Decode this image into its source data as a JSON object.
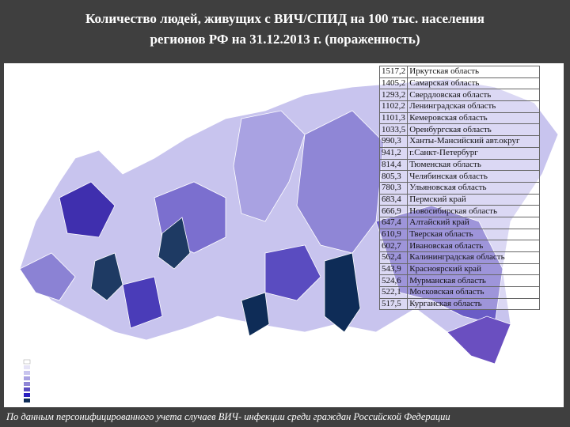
{
  "header": {
    "title_line1": "Количество людей, живущих с ВИЧ/СПИД на 100 тыс. населения",
    "title_line2": "регионов РФ на 31.12.2013 г. (пораженность)"
  },
  "table": {
    "rows": [
      [
        "1517,2",
        "Иркутская область"
      ],
      [
        "1405,2",
        "Самарская область"
      ],
      [
        "1293,2",
        "Свердловская область"
      ],
      [
        "1102,2",
        "Ленинградская область"
      ],
      [
        "1101,3",
        "Кемеровская область"
      ],
      [
        "1033,5",
        "Оренбургская область"
      ],
      [
        "990,3",
        "Ханты-Мансийский авт.округ"
      ],
      [
        "941,2",
        "г.Санкт-Петербург"
      ],
      [
        "814,4",
        "Тюменская область"
      ],
      [
        "805,3",
        "Челябинская область"
      ],
      [
        "780,3",
        "Ульяновская область"
      ],
      [
        "683,4",
        "Пермский край"
      ],
      [
        "666,9",
        "Новосибирская область"
      ],
      [
        "647,4",
        "Алтайский край"
      ],
      [
        "610,9",
        "Тверская область"
      ],
      [
        "602,7",
        "Ивановская область"
      ],
      [
        "562,4",
        "Калининградская область"
      ],
      [
        "543,9",
        "Красноярский край"
      ],
      [
        "524,6",
        "Мурманская область"
      ],
      [
        "522,1",
        "Московская область"
      ],
      [
        "517,5",
        "Курганская область"
      ]
    ]
  },
  "footer": {
    "note": "По данным персонифицированного учета случаев ВИЧ- инфекции среди граждан Российской Федерации"
  }
}
